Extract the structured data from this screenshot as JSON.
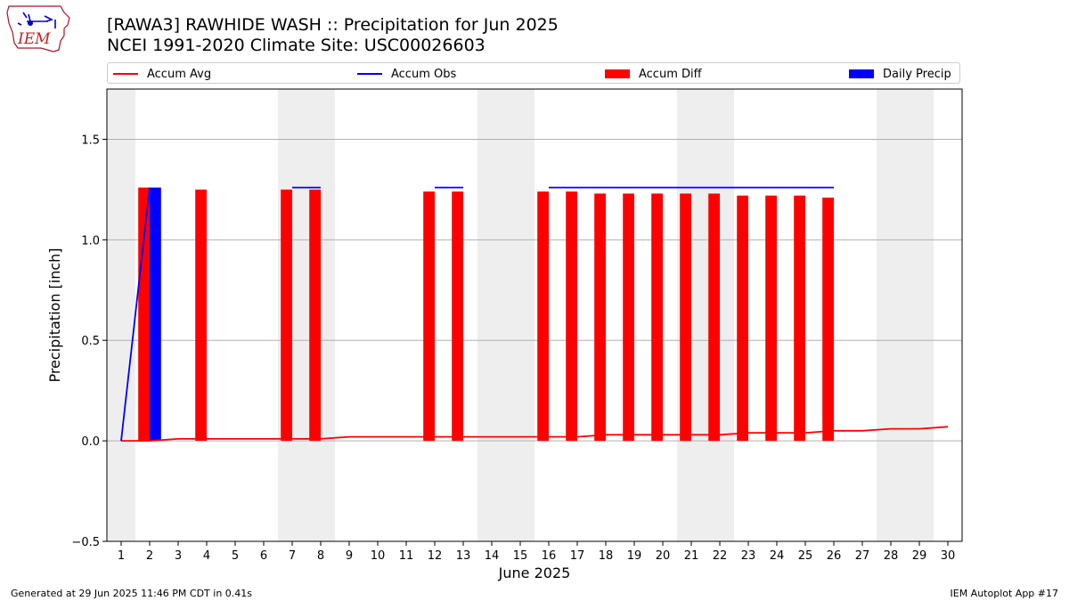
{
  "title_line1": "[RAWA3] RAWHIDE WASH :: Precipitation for Jun 2025",
  "title_line2": "NCEI 1991-2020 Climate Site: USC00026603",
  "logo_text": "IEM",
  "footer_left": "Generated at 29 Jun 2025 11:46 PM CDT in 0.41s",
  "footer_right": "IEM Autoplot App #17",
  "colors": {
    "avg": "#ff0000",
    "obs": "#0000ff",
    "diff": "#ff0000",
    "daily": "#0000ff",
    "weekend": "#eeeeee"
  },
  "chart_data": {
    "type": "bar",
    "xlabel": "June 2025",
    "ylabel": "Precipitation [inch]",
    "ylim": [
      -0.5,
      1.75
    ],
    "xlim": [
      0.5,
      30.5
    ],
    "yticks": [
      -0.5,
      0.0,
      0.5,
      1.0,
      1.5
    ],
    "ytick_labels": [
      "−0.5",
      "0.0",
      "0.5",
      "1.0",
      "1.5"
    ],
    "xticks": [
      1,
      2,
      3,
      4,
      5,
      6,
      7,
      8,
      9,
      10,
      11,
      12,
      13,
      14,
      15,
      16,
      17,
      18,
      19,
      20,
      21,
      22,
      23,
      24,
      25,
      26,
      27,
      28,
      29,
      30
    ],
    "grid": "horizontal",
    "legend_position": "top",
    "weekend_shading": [
      [
        0.5,
        1.5
      ],
      [
        6.5,
        8.5
      ],
      [
        13.5,
        15.5
      ],
      [
        20.5,
        22.5
      ],
      [
        27.5,
        29.5
      ]
    ],
    "series": [
      {
        "name": "Accum Avg",
        "type": "line",
        "x": [
          1,
          2,
          3,
          4,
          5,
          6,
          7,
          8,
          9,
          10,
          11,
          12,
          13,
          14,
          15,
          16,
          17,
          18,
          19,
          20,
          21,
          22,
          23,
          24,
          25,
          26,
          27,
          28,
          29,
          30
        ],
        "values": [
          0.0,
          0.0,
          0.01,
          0.01,
          0.01,
          0.01,
          0.01,
          0.01,
          0.02,
          0.02,
          0.02,
          0.02,
          0.02,
          0.02,
          0.02,
          0.02,
          0.02,
          0.03,
          0.03,
          0.03,
          0.03,
          0.03,
          0.04,
          0.04,
          0.04,
          0.05,
          0.05,
          0.06,
          0.06,
          0.07
        ]
      },
      {
        "name": "Accum Obs",
        "type": "line",
        "x": [
          1,
          2,
          3,
          4,
          5,
          6,
          7,
          8,
          9,
          10,
          11,
          12,
          13,
          14,
          15,
          16,
          17,
          18,
          19,
          20,
          21,
          22,
          23,
          24,
          25,
          26
        ],
        "values": [
          0.0,
          1.26,
          null,
          null,
          null,
          null,
          1.26,
          1.26,
          null,
          null,
          null,
          1.26,
          1.26,
          null,
          null,
          1.26,
          1.26,
          1.26,
          1.26,
          1.26,
          1.26,
          1.26,
          1.26,
          1.26,
          1.26,
          1.26
        ]
      },
      {
        "name": "Accum Diff",
        "type": "bar",
        "x": [
          2,
          4,
          7,
          8,
          12,
          13,
          16,
          17,
          18,
          19,
          20,
          21,
          22,
          23,
          24,
          25,
          26
        ],
        "values": [
          1.26,
          1.25,
          1.25,
          1.25,
          1.24,
          1.24,
          1.24,
          1.24,
          1.23,
          1.23,
          1.23,
          1.23,
          1.23,
          1.22,
          1.22,
          1.22,
          1.21
        ]
      },
      {
        "name": "Daily Precip",
        "type": "bar",
        "x": [
          2
        ],
        "values": [
          1.26
        ]
      }
    ]
  }
}
